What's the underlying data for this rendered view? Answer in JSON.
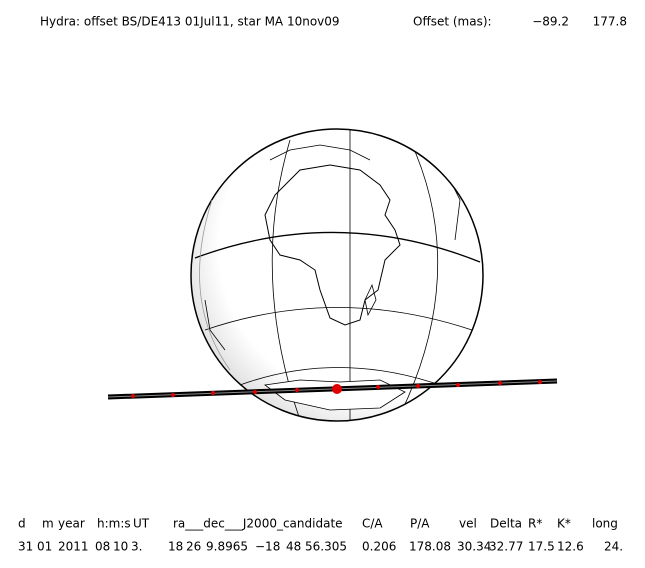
{
  "header": {
    "title": "Hydra: offset BS/DE413 01Jul11, star MA 10nov09",
    "offset_label": "Offset (mas):",
    "offset_x": "−89.2",
    "offset_y": "177.8"
  },
  "table": {
    "headers": [
      "d",
      "m",
      "year",
      "h:m:s",
      "UT",
      "ra___dec___J2000_candidate",
      "C/A",
      "P/A",
      "vel",
      "Delta",
      "R*",
      "K*",
      "long"
    ],
    "rows": [
      [
        "31",
        "01",
        "2011",
        "08",
        "10",
        "3.",
        "18",
        "26",
        "9.8965",
        "−18",
        "48",
        "56.305",
        "0.206",
        "178.08",
        "30.34",
        "32.77",
        "17.5",
        "12.6",
        "24."
      ]
    ]
  }
}
